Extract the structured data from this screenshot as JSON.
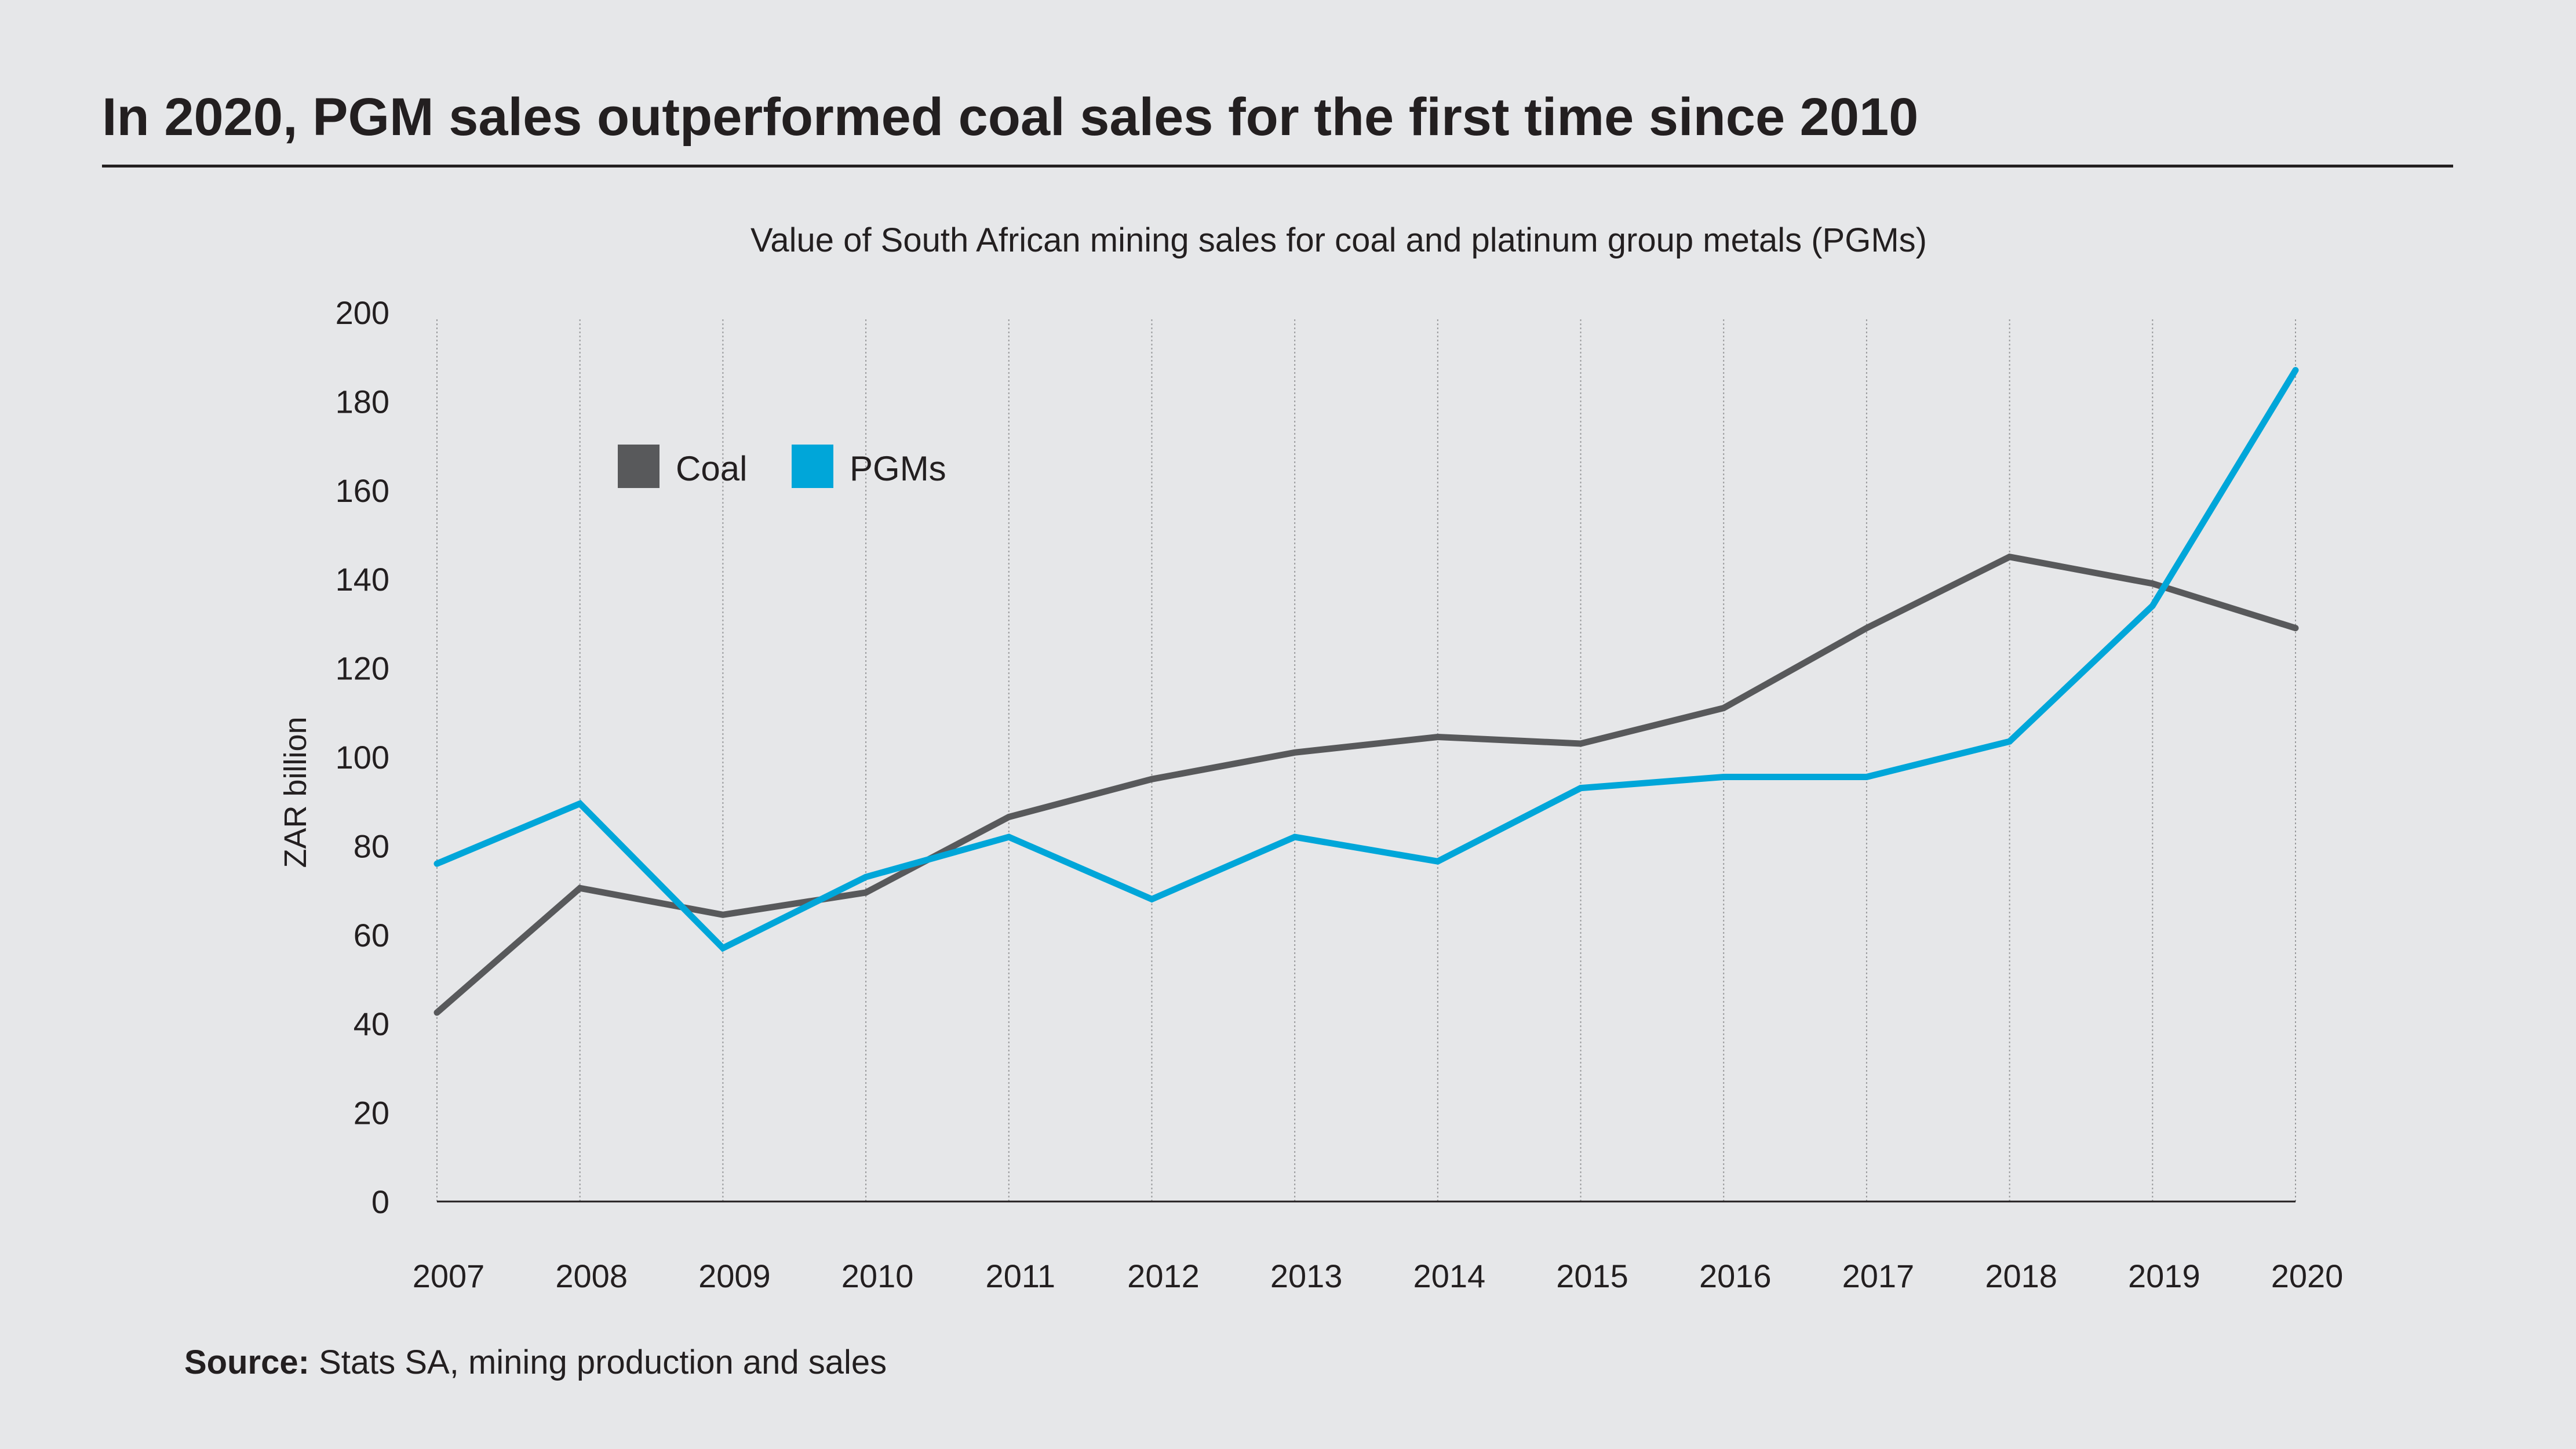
{
  "header": {
    "title": "In 2020, PGM sales outperformed coal sales for the first time since 2010"
  },
  "chart_data": {
    "type": "line",
    "title": "Value of South African mining sales for coal and platinum group metals (PGMs)",
    "xlabel": "",
    "ylabel": "ZAR billion",
    "x": [
      "2007",
      "2008",
      "2009",
      "2010",
      "2011",
      "2012",
      "2013",
      "2014",
      "2015",
      "2016",
      "2017",
      "2018",
      "2019",
      "2020"
    ],
    "yticks": [
      0,
      20,
      40,
      60,
      80,
      100,
      120,
      140,
      160,
      180,
      200
    ],
    "ylim": [
      0,
      200
    ],
    "grid": "vertical dotted",
    "legend_position": "top-left",
    "series": [
      {
        "name": "Coal",
        "color": "#58595b",
        "values": [
          42.5,
          70.5,
          64.5,
          69.5,
          86.5,
          95,
          101,
          104.5,
          103,
          111,
          129,
          145,
          139,
          129
        ]
      },
      {
        "name": "PGMs",
        "color": "#00a6d9",
        "values": [
          76,
          89.5,
          57,
          73,
          82,
          68,
          82,
          76.5,
          93,
          95.5,
          95.5,
          103.5,
          134,
          187
        ]
      }
    ]
  },
  "footer": {
    "source_label": "Source:",
    "source_text": " Stats SA, mining production and sales"
  }
}
